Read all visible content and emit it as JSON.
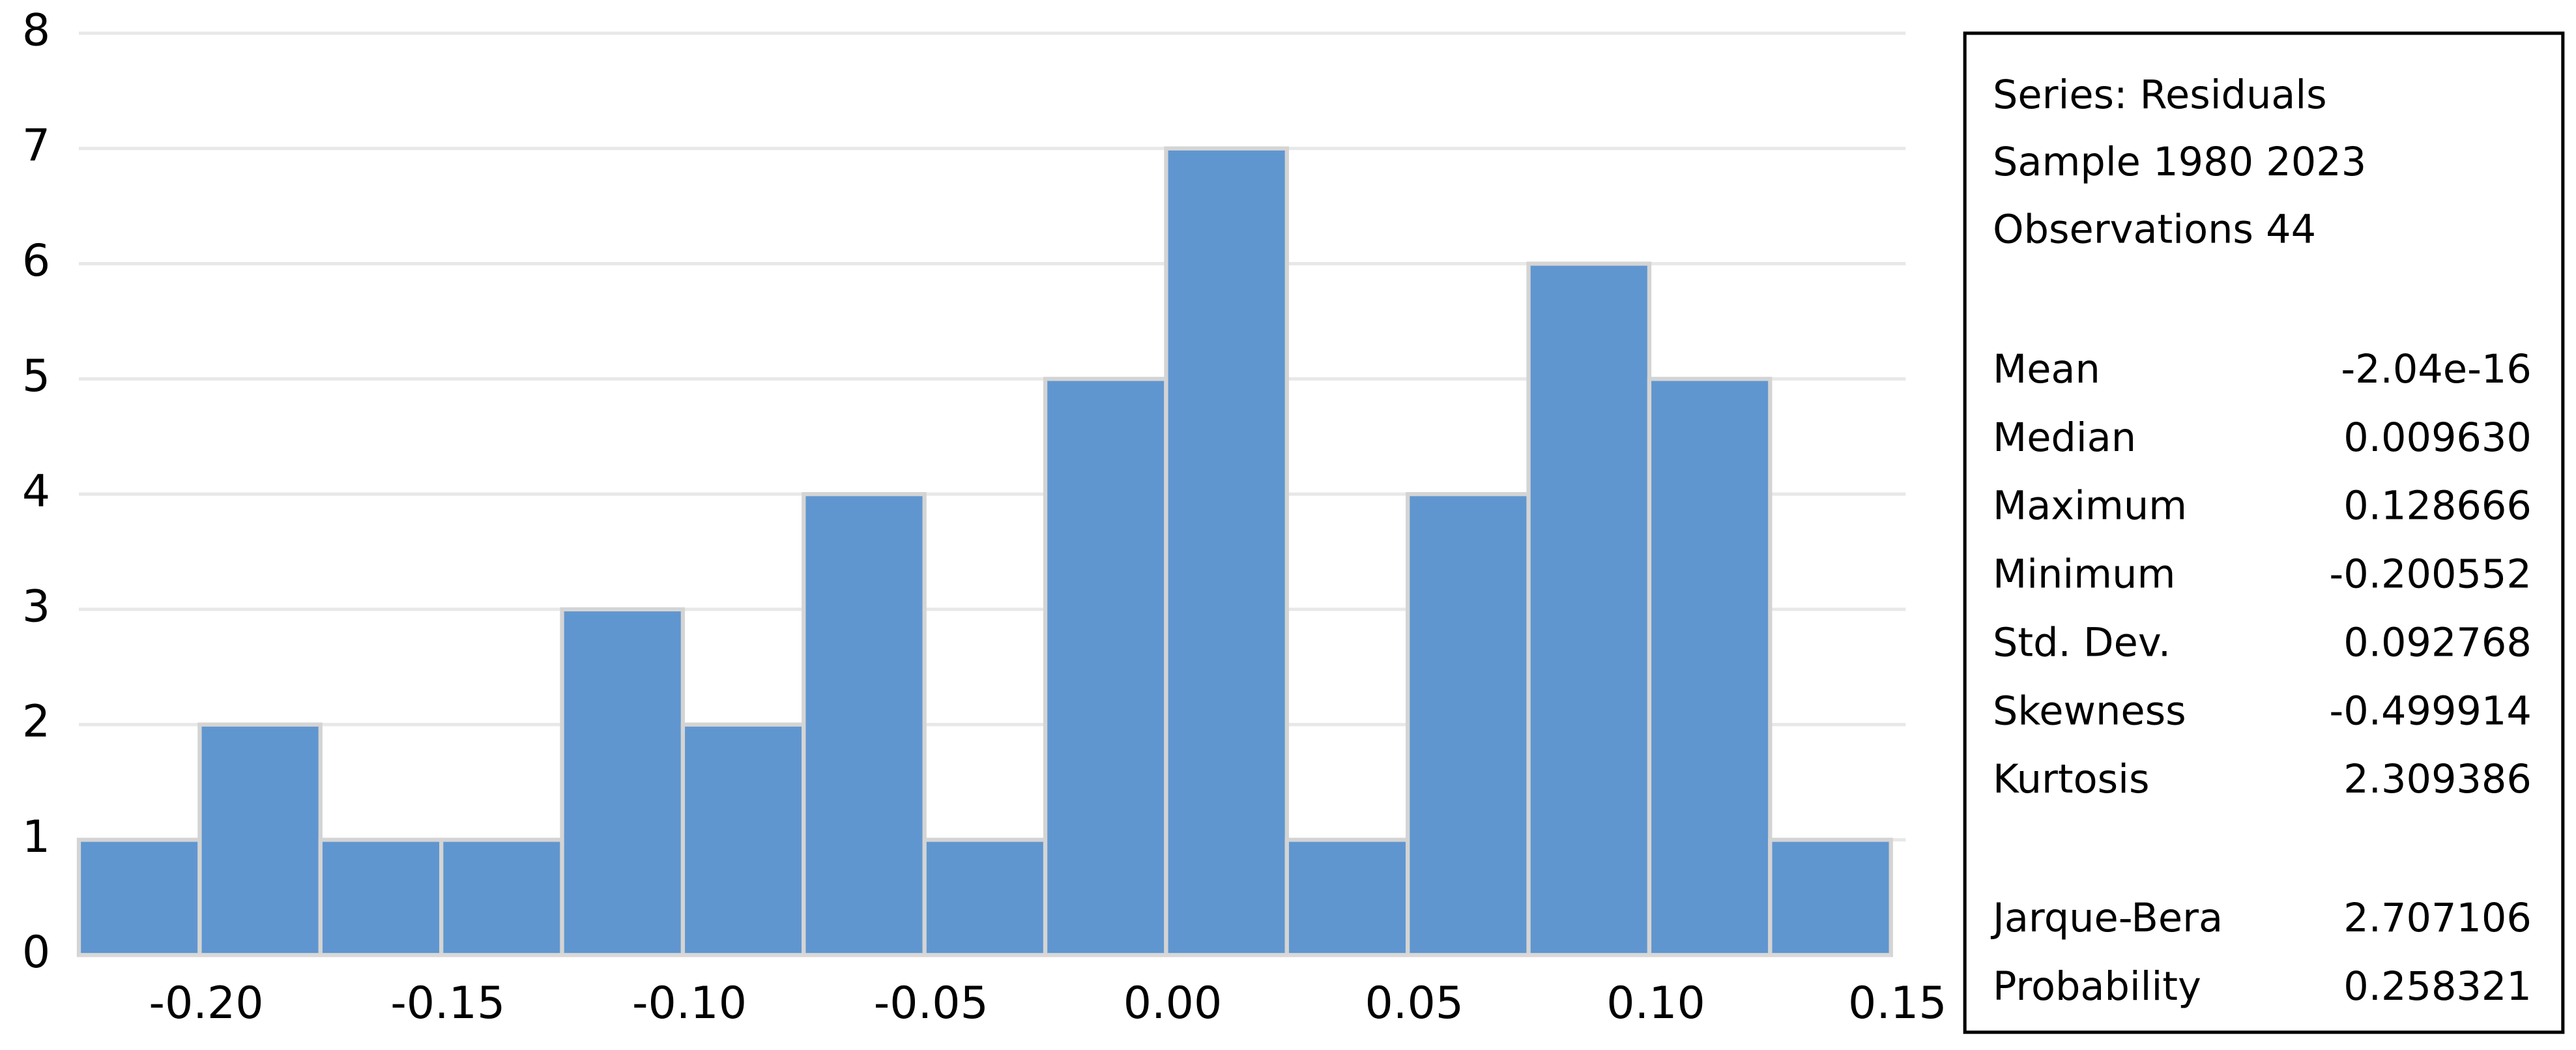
{
  "chart_data": {
    "type": "histogram",
    "bins": [
      -0.225,
      -0.2,
      -0.175,
      -0.15,
      -0.125,
      -0.1,
      -0.075,
      -0.05,
      -0.025,
      0,
      0.025,
      0.05,
      0.075,
      0.1,
      0.125,
      0.15
    ],
    "counts": [
      1,
      2,
      1,
      1,
      3,
      2,
      4,
      1,
      5,
      7,
      1,
      4,
      6,
      5,
      1
    ],
    "color": "#6096cf",
    "xlim": [
      -0.225,
      0.15
    ],
    "xticks": [
      {
        "value": -0.2,
        "label": "-0.20"
      },
      {
        "value": -0.15,
        "label": "-0.15"
      },
      {
        "value": -0.1,
        "label": "-0.10"
      },
      {
        "value": -0.05,
        "label": "-0.05"
      },
      {
        "value": 0,
        "label": "0.00"
      },
      {
        "value": 0.05,
        "label": "0.05"
      },
      {
        "value": 0.1,
        "label": "0.10"
      },
      {
        "value": 0.15,
        "label": "0.15"
      }
    ],
    "ylim": [
      0,
      8
    ],
    "yticks": [
      0,
      1,
      2,
      3,
      4,
      5,
      6,
      7,
      8
    ],
    "grid": true
  },
  "stats_box": {
    "header": [
      "Series: Residuals",
      "Sample 1980 2023",
      "Observations 44"
    ],
    "stats": [
      [
        "Mean",
        "-2.04e-16"
      ],
      [
        "Median",
        "0.009630"
      ],
      [
        "Maximum",
        "0.128666"
      ],
      [
        "Minimum",
        "-0.200552"
      ],
      [
        "Std. Dev.",
        "0.092768"
      ],
      [
        "Skewness",
        "-0.499914"
      ],
      [
        "Kurtosis",
        "2.309386"
      ]
    ],
    "tests": [
      [
        "Jarque-Bera",
        "2.707106"
      ],
      [
        "Probability",
        "0.258321"
      ]
    ]
  }
}
